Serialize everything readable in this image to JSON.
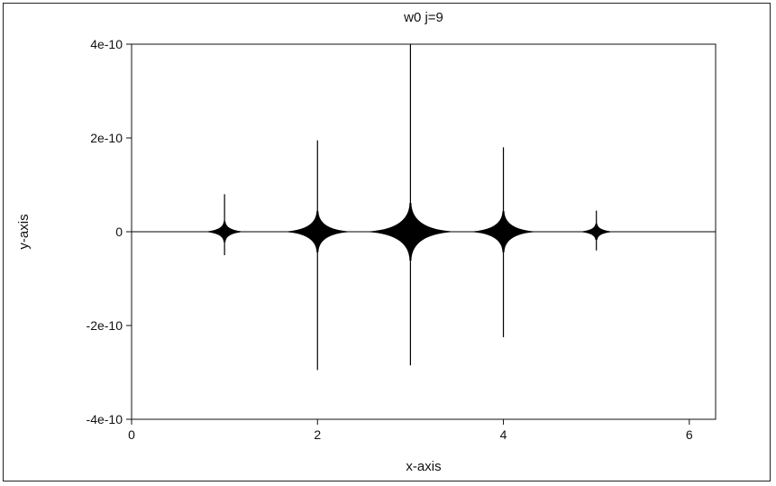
{
  "chart_data": {
    "type": "line",
    "title": "w0 j=9",
    "xlabel": "x-axis",
    "ylabel": "y-axis",
    "xlim": [
      0,
      6.283
    ],
    "ylim": [
      -4e-10,
      4e-10
    ],
    "x_ticks": [
      0,
      2,
      4,
      6
    ],
    "x_tick_labels": [
      "0",
      "2",
      "4",
      "6"
    ],
    "y_ticks": [
      -4e-10,
      -2e-10,
      0,
      2e-10,
      4e-10
    ],
    "y_tick_labels": [
      "-4e-10",
      "-2e-10",
      "0",
      "2e-10",
      "4e-10"
    ],
    "grid": false,
    "legend": "none",
    "color": "#000000",
    "spikes": [
      {
        "x": 1.0,
        "y_max": 8e-11,
        "y_min": -5e-11,
        "envelope": 1e-11
      },
      {
        "x": 2.0,
        "y_max": 1.95e-10,
        "y_min": -2.95e-10,
        "envelope": 2e-11
      },
      {
        "x": 3.0,
        "y_max": 4e-10,
        "y_min": -2.85e-10,
        "envelope": 2.8e-11
      },
      {
        "x": 4.0,
        "y_max": 1.8e-10,
        "y_min": -2.25e-10,
        "envelope": 2e-11
      },
      {
        "x": 5.0,
        "y_max": 4.5e-11,
        "y_min": -4e-11,
        "envelope": 8e-12
      }
    ]
  }
}
